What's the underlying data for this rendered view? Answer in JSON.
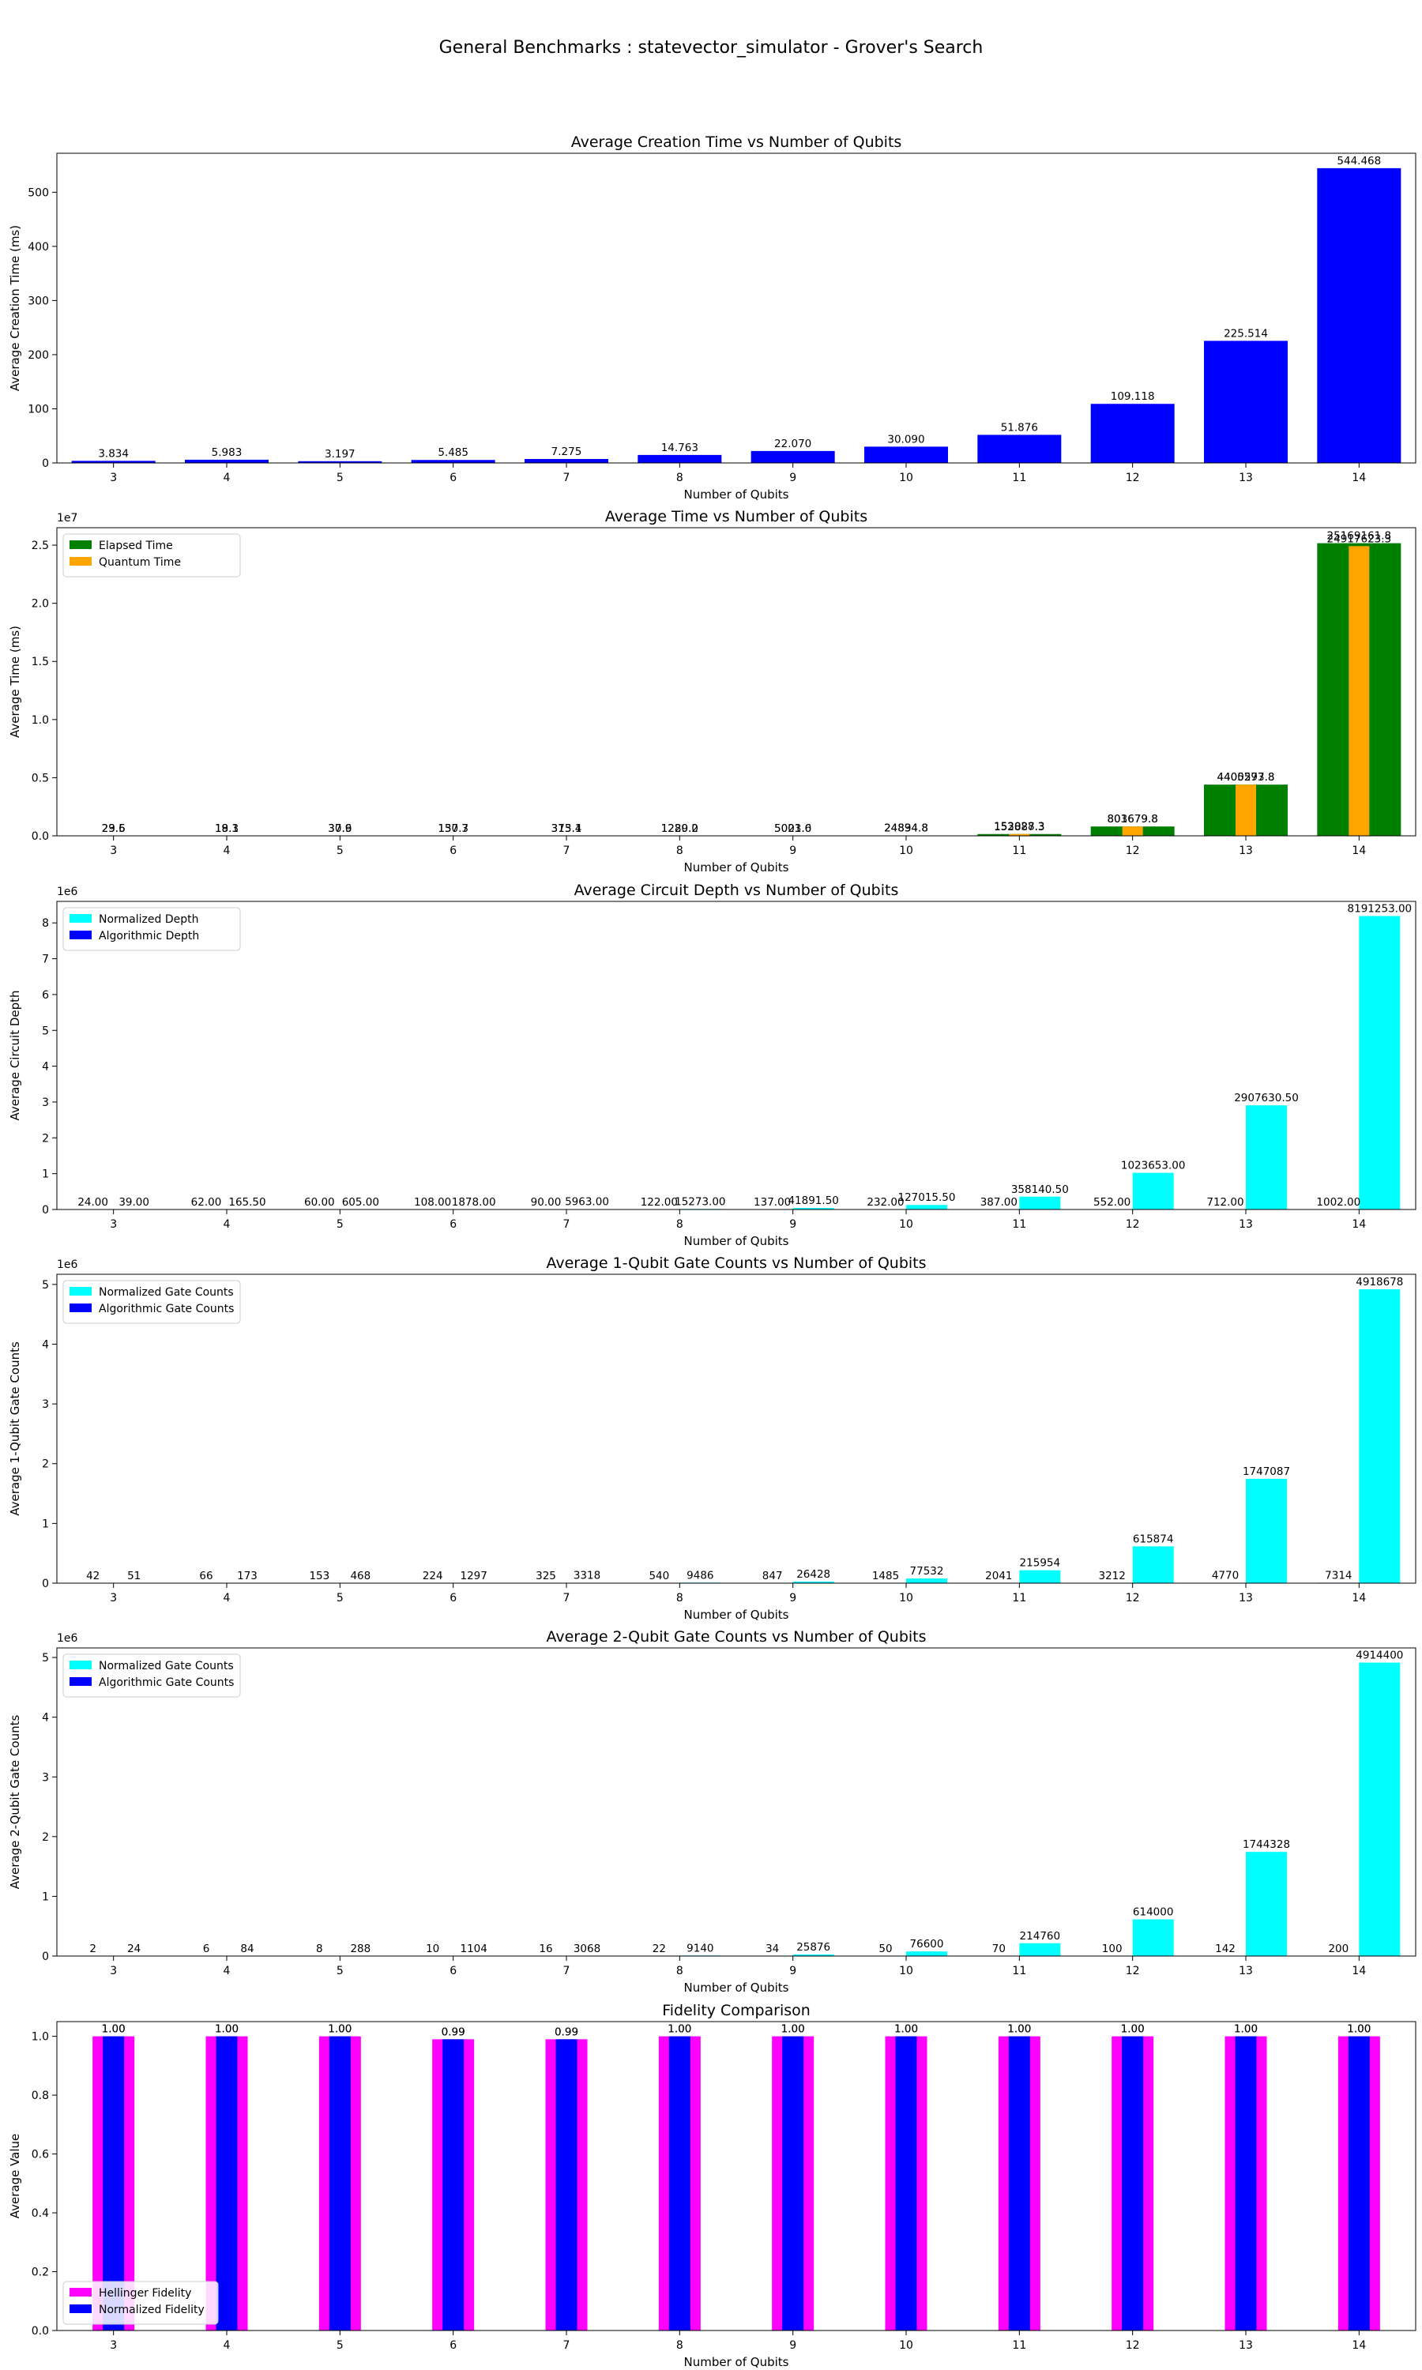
{
  "figure": {
    "suptitle": "General Benchmarks : statevector_simulator - Grover's Search"
  },
  "colors": {
    "creation": "#0000ff",
    "elapsed": "#008000",
    "quantum": "#ffa500",
    "normalized": "#00ffff",
    "algorithmic": "#0000ff",
    "hellinger": "#ff00ff",
    "fidelity_norm": "#0000ff"
  },
  "chart_data": [
    {
      "id": "creation",
      "type": "bar",
      "title": "Average Creation Time vs Number of Qubits",
      "xlabel": "Number of Qubits",
      "ylabel": "Average Creation Time (ms)",
      "multiplier": "",
      "categories": [
        "3",
        "4",
        "5",
        "6",
        "7",
        "8",
        "9",
        "10",
        "11",
        "12",
        "13",
        "14"
      ],
      "ylim": [
        0,
        572
      ],
      "yticks": [
        0,
        100,
        200,
        300,
        400,
        500
      ],
      "ytick_labels": [
        "0",
        "100",
        "200",
        "300",
        "400",
        "500"
      ],
      "legend": null,
      "series": [
        {
          "key": "creation",
          "layout": "full",
          "values": [
            3.834,
            5.983,
            3.197,
            5.485,
            7.275,
            14.763,
            22.07,
            30.09,
            51.876,
            109.118,
            225.514,
            544.468
          ],
          "labels": [
            "3.834",
            "5.983",
            "3.197",
            "5.485",
            "7.275",
            "14.763",
            "22.070",
            "30.090",
            "51.876",
            "109.118",
            "225.514",
            "544.468"
          ],
          "label_mode": "top"
        }
      ]
    },
    {
      "id": "time",
      "type": "bar",
      "title": "Average Time vs Number of Qubits",
      "xlabel": "Number of Qubits",
      "ylabel": "Average Time (ms)",
      "multiplier": "1e7",
      "categories": [
        "3",
        "4",
        "5",
        "6",
        "7",
        "8",
        "9",
        "10",
        "11",
        "12",
        "13",
        "14"
      ],
      "ylim": [
        0,
        26500000
      ],
      "yticks": [
        0,
        5000000,
        10000000,
        15000000,
        20000000,
        25000000
      ],
      "ytick_labels": [
        "0.0",
        "0.5",
        "1.0",
        "1.5",
        "2.0",
        "2.5"
      ],
      "legend": {
        "position": "upper-left"
      },
      "series": [
        {
          "key": "elapsed",
          "name": "Elapsed Time",
          "layout": "full",
          "values": [
            29.6,
            19.3,
            37.9,
            150.3,
            375.1,
            1280.2,
            5021.0,
            24894.8,
            153028.3,
            803679.8,
            4405293.8,
            25169161.8
          ],
          "labels": [
            "29.6",
            "19.3",
            "37.9",
            "150.3",
            "375.1",
            "1280.2",
            "5021.0",
            "24894.8",
            "153028.3",
            "803679.8",
            "4405293.8",
            "25169161.8"
          ],
          "label_mode": "top"
        },
        {
          "key": "quantum",
          "name": "Quantum Time",
          "layout": "narrow",
          "values": [
            23.5,
            18.1,
            30.6,
            137.7,
            313.4,
            1229.0,
            5003.6,
            24834.8,
            152887.3,
            801679.8,
            4400577.8,
            24917623.3
          ],
          "labels": [
            "23.5",
            "18.1",
            "30.6",
            "137.7",
            "313.4",
            "1229.0",
            "5003.6",
            "24834.8",
            "152887.3",
            "801679.8",
            "4400577.8",
            "24917623.3"
          ],
          "label_mode": "top"
        }
      ]
    },
    {
      "id": "depth",
      "type": "bar",
      "title": "Average Circuit Depth vs Number of Qubits",
      "xlabel": "Number of Qubits",
      "ylabel": "Average Circuit Depth",
      "multiplier": "1e6",
      "categories": [
        "3",
        "4",
        "5",
        "6",
        "7",
        "8",
        "9",
        "10",
        "11",
        "12",
        "13",
        "14"
      ],
      "ylim": [
        0,
        8600000
      ],
      "yticks": [
        0,
        1000000,
        2000000,
        3000000,
        4000000,
        5000000,
        6000000,
        7000000,
        8000000
      ],
      "ytick_labels": [
        "0",
        "1",
        "2",
        "3",
        "4",
        "5",
        "6",
        "7",
        "8"
      ],
      "legend": {
        "position": "upper-left"
      },
      "series": [
        {
          "key": "normalized",
          "name": "Normalized Depth",
          "layout": "half-right",
          "values": [
            39.0,
            165.5,
            605.0,
            1878.0,
            5963.0,
            15273.0,
            41891.5,
            127015.5,
            358140.5,
            1023653.0,
            2907630.5,
            8191253.0
          ],
          "labels": [
            "39.00",
            "165.50",
            "605.00",
            "1878.00",
            "5963.00",
            "15273.00",
            "41891.50",
            "127015.50",
            "358140.50",
            "1023653.00",
            "2907630.50",
            "8191253.00"
          ],
          "label_mode": "top"
        },
        {
          "key": "algorithmic",
          "name": "Algorithmic Depth",
          "layout": "half-left",
          "values": [
            24.0,
            62.0,
            60.0,
            108.0,
            90.0,
            122.0,
            137.0,
            232.0,
            387.0,
            552.0,
            712.0,
            1002.0
          ],
          "labels": [
            "24.00",
            "62.00",
            "60.00",
            "108.00",
            "90.00",
            "122.00",
            "137.00",
            "232.00",
            "387.00",
            "552.00",
            "712.00",
            "1002.00"
          ],
          "label_mode": "top"
        }
      ]
    },
    {
      "id": "gate1q",
      "type": "bar",
      "title": "Average 1-Qubit Gate Counts vs Number of Qubits",
      "xlabel": "Number of Qubits",
      "ylabel": "Average 1-Qubit Gate Counts",
      "multiplier": "1e6",
      "categories": [
        "3",
        "4",
        "5",
        "6",
        "7",
        "8",
        "9",
        "10",
        "11",
        "12",
        "13",
        "14"
      ],
      "ylim": [
        0,
        5170000
      ],
      "yticks": [
        0,
        1000000,
        2000000,
        3000000,
        4000000,
        5000000
      ],
      "ytick_labels": [
        "0",
        "1",
        "2",
        "3",
        "4",
        "5"
      ],
      "legend": {
        "position": "upper-left"
      },
      "series": [
        {
          "key": "normalized",
          "name": "Normalized Gate Counts",
          "layout": "half-right",
          "values": [
            51,
            173,
            468,
            1297,
            3318,
            9486,
            26428,
            77532,
            215954,
            615874,
            1747087,
            4918678
          ],
          "labels": [
            "51",
            "173",
            "468",
            "1297",
            "3318",
            "9486",
            "26428",
            "77532",
            "215954",
            "615874",
            "1747087",
            "4918678"
          ],
          "label_mode": "top"
        },
        {
          "key": "algorithmic",
          "name": "Algorithmic Gate Counts",
          "layout": "half-left",
          "values": [
            42,
            66,
            153,
            224,
            325,
            540,
            847,
            1485,
            2041,
            3212,
            4770,
            7314
          ],
          "labels": [
            "42",
            "66",
            "153",
            "224",
            "325",
            "540",
            "847",
            "1485",
            "2041",
            "3212",
            "4770",
            "7314"
          ],
          "label_mode": "top"
        }
      ]
    },
    {
      "id": "gate2q",
      "type": "bar",
      "title": "Average 2-Qubit Gate Counts vs Number of Qubits",
      "xlabel": "Number of Qubits",
      "ylabel": "Average 2-Qubit Gate Counts",
      "multiplier": "1e6",
      "categories": [
        "3",
        "4",
        "5",
        "6",
        "7",
        "8",
        "9",
        "10",
        "11",
        "12",
        "13",
        "14"
      ],
      "ylim": [
        0,
        5160000
      ],
      "yticks": [
        0,
        1000000,
        2000000,
        3000000,
        4000000,
        5000000
      ],
      "ytick_labels": [
        "0",
        "1",
        "2",
        "3",
        "4",
        "5"
      ],
      "legend": {
        "position": "upper-left"
      },
      "series": [
        {
          "key": "normalized",
          "name": "Normalized Gate Counts",
          "layout": "half-right",
          "values": [
            24,
            84,
            288,
            1104,
            3068,
            9140,
            25876,
            76600,
            214760,
            614000,
            1744328,
            4914400
          ],
          "labels": [
            "24",
            "84",
            "288",
            "1104",
            "3068",
            "9140",
            "25876",
            "76600",
            "214760",
            "614000",
            "1744328",
            "4914400"
          ],
          "label_mode": "top"
        },
        {
          "key": "algorithmic",
          "name": "Algorithmic Gate Counts",
          "layout": "half-left",
          "values": [
            2,
            6,
            8,
            10,
            16,
            22,
            34,
            50,
            70,
            100,
            142,
            200
          ],
          "labels": [
            "2",
            "6",
            "8",
            "10",
            "16",
            "22",
            "34",
            "50",
            "70",
            "100",
            "142",
            "200"
          ],
          "label_mode": "top"
        }
      ]
    },
    {
      "id": "fidelity",
      "type": "bar",
      "title": "Fidelity Comparison",
      "xlabel": "Number of Qubits",
      "ylabel": "Average Value",
      "multiplier": "",
      "categories": [
        "3",
        "4",
        "5",
        "6",
        "7",
        "8",
        "9",
        "10",
        "11",
        "12",
        "13",
        "14"
      ],
      "ylim": [
        0,
        1.05
      ],
      "yticks": [
        0,
        0.2,
        0.4,
        0.6,
        0.8,
        1.0
      ],
      "ytick_labels": [
        "0.0",
        "0.2",
        "0.4",
        "0.6",
        "0.8",
        "1.0"
      ],
      "legend": {
        "position": "lower-left"
      },
      "series": [
        {
          "key": "hellinger",
          "name": "Hellinger Fidelity",
          "layout": "fidelity-wide",
          "values": [
            1.0,
            1.0,
            1.0,
            0.99,
            0.99,
            1.0,
            1.0,
            1.0,
            1.0,
            1.0,
            1.0,
            1.0
          ],
          "labels": [
            "1.00",
            "1.00",
            "1.00",
            "0.99",
            "0.99",
            "1.00",
            "1.00",
            "1.00",
            "1.00",
            "1.00",
            "1.00",
            "1.00"
          ],
          "label_mode": "top"
        },
        {
          "key": "fidelity_norm",
          "name": "Normalized Fidelity",
          "layout": "fidelity-narrow",
          "values": [
            1.0,
            1.0,
            1.0,
            0.99,
            0.99,
            1.0,
            1.0,
            1.0,
            1.0,
            1.0,
            1.0,
            1.0
          ],
          "labels": [
            "1.00",
            "1.00",
            "1.00",
            "0.99",
            "0.99",
            "1.00",
            "1.00",
            "1.00",
            "1.00",
            "1.00",
            "1.00",
            "1.00"
          ],
          "label_mode": "top"
        }
      ]
    }
  ]
}
